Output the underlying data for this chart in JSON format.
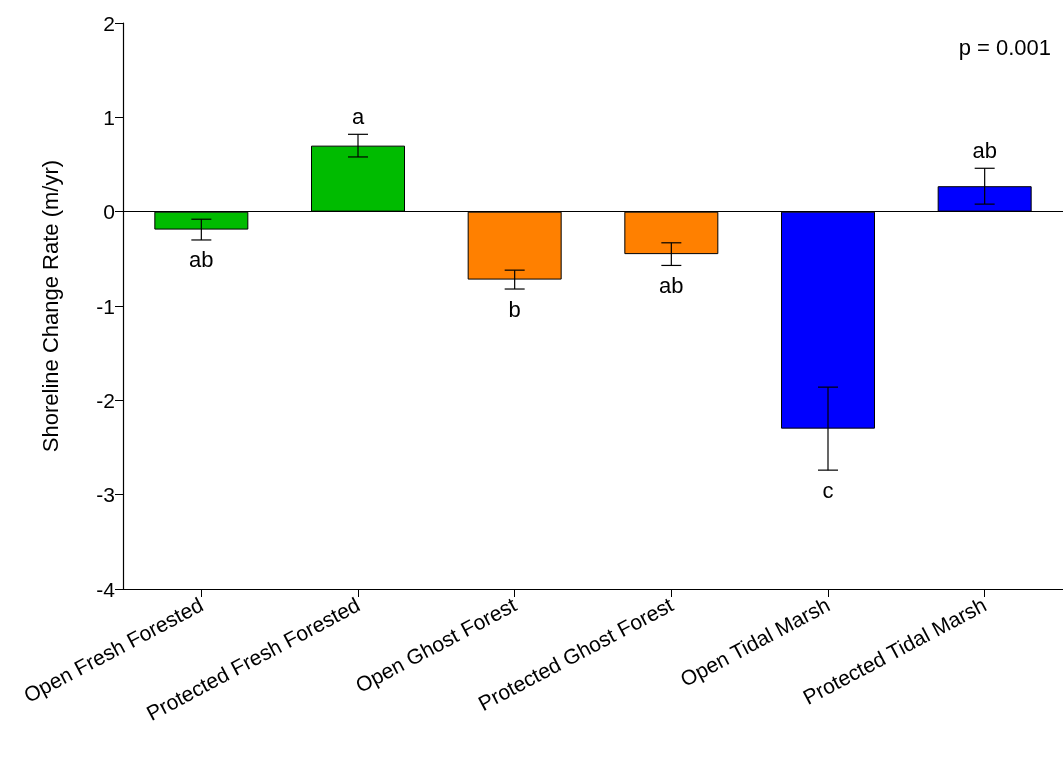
{
  "chart_data": {
    "type": "bar",
    "ylabel": "Shoreline Change Rate (m/yr)",
    "categories": [
      "Open Fresh Forested",
      "Protected Fresh Forested",
      "Open Ghost Forest",
      "Protected Ghost Forest",
      "Open Tidal Marsh",
      "Protected Tidal Marsh"
    ],
    "values": [
      -0.19,
      0.7,
      -0.72,
      -0.45,
      -2.3,
      0.27
    ],
    "errors": [
      0.11,
      0.12,
      0.1,
      0.12,
      0.44,
      0.19
    ],
    "colors": [
      "#00bb00",
      "#00bb00",
      "#ff8000",
      "#ff8000",
      "#0000ff",
      "#0000ff"
    ],
    "ylim": [
      -4,
      2
    ],
    "yticks": [
      -4,
      -3,
      -2,
      -1,
      0,
      1,
      2
    ],
    "grid": false,
    "ref_lines": [
      {
        "axis": "y",
        "value": 0,
        "color": "#000000"
      }
    ],
    "annotations": [
      "p = 0.001",
      "ab",
      "a",
      "b",
      "ab",
      "c",
      "ab"
    ]
  }
}
